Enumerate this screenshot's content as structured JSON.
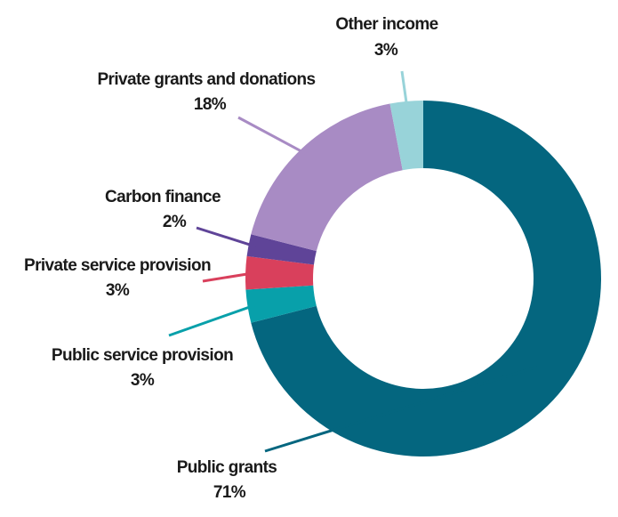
{
  "chart_data": {
    "type": "pie",
    "variant": "donut",
    "slices": [
      {
        "label": "Public grants",
        "value": 71,
        "display": "71%",
        "color": "#04667f"
      },
      {
        "label": "Public service provision",
        "value": 3,
        "display": "3%",
        "color": "#08a0aa"
      },
      {
        "label": "Private service provision",
        "value": 3,
        "display": "3%",
        "color": "#d9405c"
      },
      {
        "label": "Carbon finance",
        "value": 2,
        "display": "2%",
        "color": "#5f4498"
      },
      {
        "label": "Private grants and donations",
        "value": 18,
        "display": "18%",
        "color": "#a88bc4"
      },
      {
        "label": "Other income",
        "value": 3,
        "display": "3%",
        "color": "#98d3d9"
      }
    ]
  }
}
